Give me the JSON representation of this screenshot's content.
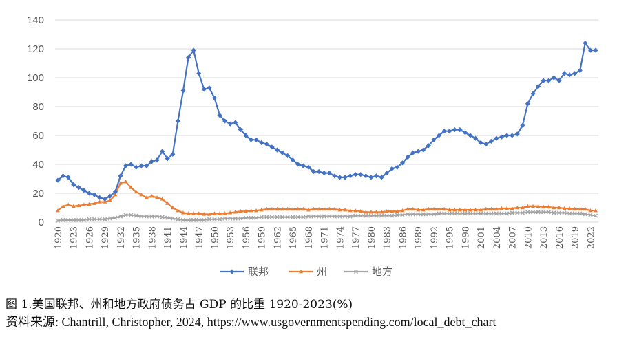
{
  "chart_data": {
    "type": "line",
    "title": "",
    "xlabel": "",
    "ylabel": "",
    "ylim": [
      0,
      140
    ],
    "yticks": [
      0,
      20,
      40,
      60,
      80,
      100,
      120,
      140
    ],
    "xlim": [
      1920,
      2023
    ],
    "xticks": [
      "1920",
      "1923",
      "1926",
      "1929",
      "1932",
      "1935",
      "1938",
      "1941",
      "1944",
      "1947",
      "1950",
      "1953",
      "1956",
      "1959",
      "1962",
      "1965",
      "1968",
      "1971",
      "1974",
      "1977",
      "1980",
      "1983",
      "1986",
      "1989",
      "1992",
      "1995",
      "1998",
      "2001",
      "2004",
      "2007",
      "2010",
      "2013",
      "2016",
      "2019",
      "2022"
    ],
    "grid": "horizontal",
    "legend_position": "bottom",
    "x": [
      1920,
      1921,
      1922,
      1923,
      1924,
      1925,
      1926,
      1927,
      1928,
      1929,
      1930,
      1931,
      1932,
      1933,
      1934,
      1935,
      1936,
      1937,
      1938,
      1939,
      1940,
      1941,
      1942,
      1943,
      1944,
      1945,
      1946,
      1947,
      1948,
      1949,
      1950,
      1951,
      1952,
      1953,
      1954,
      1955,
      1956,
      1957,
      1958,
      1959,
      1960,
      1961,
      1962,
      1963,
      1964,
      1965,
      1966,
      1967,
      1968,
      1969,
      1970,
      1971,
      1972,
      1973,
      1974,
      1975,
      1976,
      1977,
      1978,
      1979,
      1980,
      1981,
      1982,
      1983,
      1984,
      1985,
      1986,
      1987,
      1988,
      1989,
      1990,
      1991,
      1992,
      1993,
      1994,
      1995,
      1996,
      1997,
      1998,
      1999,
      2000,
      2001,
      2002,
      2003,
      2004,
      2005,
      2006,
      2007,
      2008,
      2009,
      2010,
      2011,
      2012,
      2013,
      2014,
      2015,
      2016,
      2017,
      2018,
      2019,
      2020,
      2021,
      2022,
      2023
    ],
    "series": [
      {
        "name": "联邦",
        "color": "#4472C4",
        "marker": "diamond",
        "values": [
          29,
          32,
          31,
          26,
          24,
          22,
          20,
          19,
          17,
          16,
          18,
          21,
          32,
          39,
          40,
          38,
          39,
          39,
          42,
          43,
          49,
          44,
          47,
          70,
          91,
          114,
          119,
          103,
          92,
          93,
          86,
          74,
          70,
          68,
          69,
          64,
          60,
          57,
          57,
          55,
          54,
          52,
          50,
          48,
          46,
          43,
          40,
          39,
          38,
          35,
          35,
          34,
          34,
          32,
          31,
          31,
          32,
          33,
          33,
          32,
          31,
          32,
          31,
          34,
          37,
          38,
          41,
          45,
          48,
          49,
          50,
          53,
          57,
          60,
          63,
          63,
          64,
          64,
          62,
          60,
          58,
          55,
          54,
          56,
          58,
          59,
          60,
          60,
          61,
          67,
          82,
          89,
          94,
          98,
          98,
          100,
          98,
          103,
          102,
          103,
          105,
          124,
          119,
          119
        ]
      },
      {
        "name": "州",
        "color": "#ED7D31",
        "marker": "triangle",
        "values": [
          8,
          11,
          12,
          11,
          11.5,
          12,
          12.5,
          13,
          14,
          14,
          15,
          19,
          27,
          28,
          24,
          21,
          19,
          17,
          18,
          17,
          16,
          13,
          10,
          8,
          6.5,
          6,
          6,
          6,
          5.5,
          5.5,
          6,
          6,
          6,
          6.5,
          7,
          7.5,
          7.5,
          8,
          8,
          8.5,
          9,
          9,
          9,
          9,
          9,
          9,
          9,
          9,
          8.5,
          9,
          9,
          9,
          9,
          9,
          8.5,
          8.5,
          8,
          8,
          7.5,
          7,
          7,
          7,
          7,
          7.5,
          7.5,
          7.5,
          8,
          9,
          9,
          8.5,
          8.5,
          9,
          9,
          9,
          9,
          8.5,
          8.5,
          8.5,
          8.5,
          8.5,
          8.5,
          8.5,
          9,
          9,
          9,
          9.5,
          9.5,
          9.5,
          10,
          10,
          11,
          11,
          11,
          10.5,
          10.5,
          10,
          10,
          9.5,
          9.5,
          9,
          9,
          9,
          8,
          8
        ]
      },
      {
        "name": "地方",
        "color": "#A5A5A5",
        "marker": "x",
        "values": [
          1,
          1.5,
          1.5,
          1.5,
          1.5,
          1.5,
          2,
          2,
          2,
          2,
          2.5,
          3,
          4,
          5,
          5,
          4.5,
          4,
          4,
          4,
          4,
          3.5,
          3,
          2.5,
          2,
          1.5,
          1.5,
          1.5,
          1.5,
          1.5,
          2,
          2,
          2,
          2.5,
          2.5,
          2.5,
          2.5,
          3,
          3,
          3,
          3.5,
          3.5,
          3.5,
          3.5,
          3.5,
          3.5,
          3.5,
          3.5,
          3.5,
          4,
          4,
          4,
          4,
          4,
          4,
          4,
          4,
          4,
          4.5,
          4.5,
          4.5,
          4.5,
          4.5,
          4.5,
          4.5,
          4.5,
          5,
          5,
          5.5,
          5.5,
          5.5,
          5.5,
          5.5,
          5.5,
          6,
          6,
          6,
          6,
          6,
          6,
          6,
          6,
          6,
          6,
          6,
          6,
          6,
          6,
          6.5,
          6.5,
          6.5,
          7,
          7,
          7,
          7,
          7,
          6.5,
          6.5,
          6.5,
          6,
          6,
          6,
          5.5,
          5,
          4.5
        ]
      }
    ]
  },
  "caption": {
    "line1": "图 1.美国联邦、州和地方政府债务占 GDP 的比重 1920-2023(%)",
    "line2": "资料来源: Chantrill, Christopher, 2024, https://www.usgovernmentspending.com/local_debt_chart"
  }
}
